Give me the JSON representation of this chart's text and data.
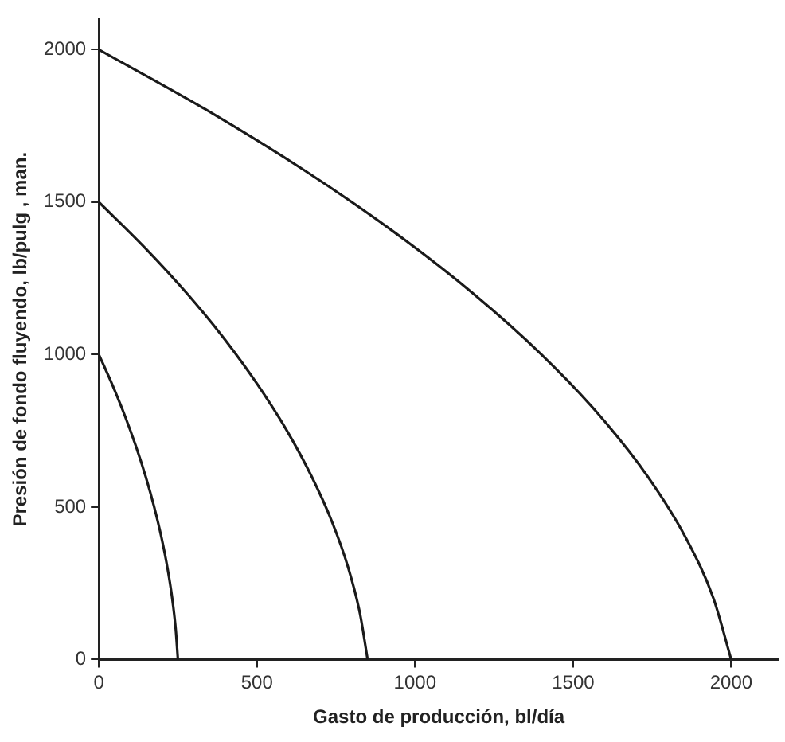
{
  "chart_data": {
    "type": "line",
    "xlabel": "Gasto de producción, bl/día",
    "ylabel": "Presión de fondo fluyendo, lb/pulg , man.",
    "xlim": [
      0,
      2150
    ],
    "ylim": [
      0,
      2100
    ],
    "xticks": [
      0,
      500,
      1000,
      1500,
      2000
    ],
    "yticks": [
      0,
      500,
      1000,
      1500,
      2000
    ],
    "grid": false,
    "legend": false,
    "marker": "none",
    "line_style": "solid",
    "series": [
      {
        "color": "#1a1a1a",
        "x": [
          0,
          43,
          82,
          117,
          148,
          175,
          198,
          217,
          232,
          243,
          250
        ],
        "values": [
          1000,
          900,
          800,
          700,
          600,
          500,
          400,
          300,
          200,
          100,
          0
        ]
      },
      {
        "color": "#1a1a1a",
        "x": [
          0,
          146,
          279,
          398,
          503,
          595,
          673,
          738,
          789,
          826,
          850
        ],
        "values": [
          1500,
          1350,
          1200,
          1050,
          900,
          750,
          600,
          450,
          300,
          150,
          0
        ]
      },
      {
        "color": "#1a1a1a",
        "x": [
          0,
          344,
          656,
          936,
          1184,
          1400,
          1584,
          1736,
          1856,
          1944,
          2000
        ],
        "values": [
          2000,
          1800,
          1600,
          1400,
          1200,
          1000,
          800,
          600,
          400,
          200,
          0
        ]
      }
    ]
  }
}
